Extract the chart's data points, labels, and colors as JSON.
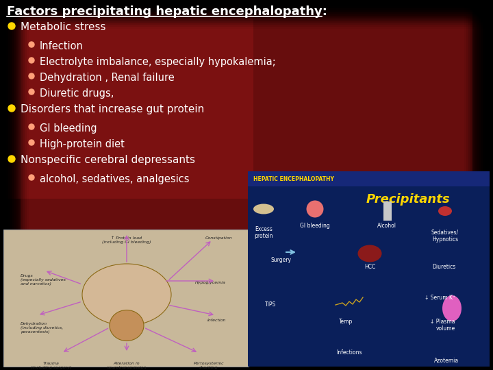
{
  "title": "Factors precipitating hepatic encephalopathy:",
  "title_color": "#FFFFFF",
  "title_fontsize": 13,
  "bg_dark": "#1a0000",
  "bg_red": "#8B1010",
  "bullet_color_l1": "#FFD700",
  "bullet_color_l2": "#FFA07A",
  "text_color": "#FFFFFF",
  "items": [
    {
      "level": 1,
      "text": "Metabolic stress"
    },
    {
      "level": 2,
      "text": "Infection"
    },
    {
      "level": 2,
      "text": "Electrolyte imbalance, especially hypokalemia;"
    },
    {
      "level": 2,
      "text": "Dehydration , Renal failure"
    },
    {
      "level": 2,
      "text": "Diuretic drugs,"
    },
    {
      "level": 1,
      "text": "Disorders that increase gut protein"
    },
    {
      "level": 2,
      "text": "GI bleeding"
    },
    {
      "level": 2,
      "text": "High-protein diet"
    },
    {
      "level": 1,
      "text": "Nonspecific cerebral depressants"
    },
    {
      "level": 2,
      "text": "alcohol, sedatives, analgesics"
    }
  ],
  "figwidth": 7.2,
  "figheight": 5.4,
  "dpi": 100
}
